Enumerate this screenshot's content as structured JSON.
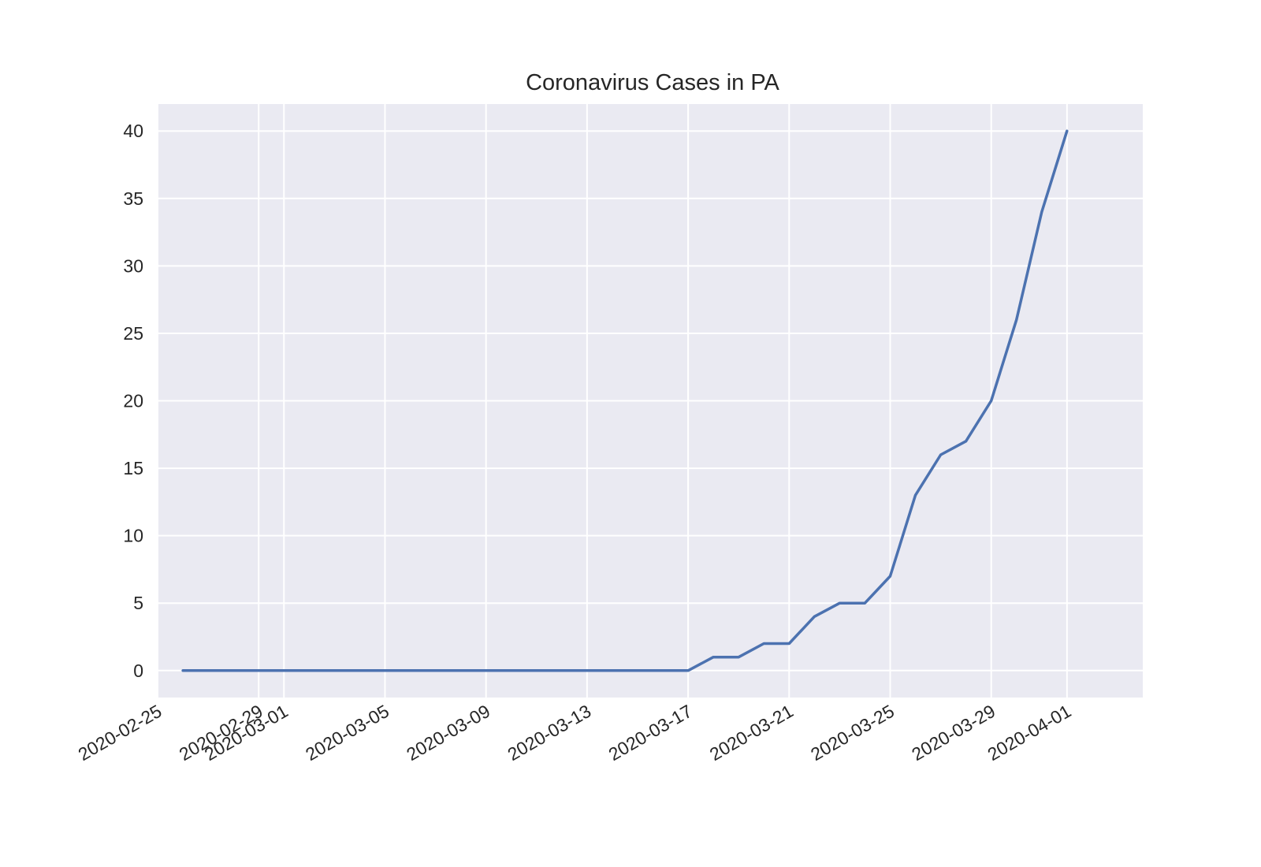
{
  "chart_data": {
    "type": "line",
    "title": "Coronavirus Cases in PA",
    "xlabel": "",
    "ylabel": "",
    "grid": true,
    "series_color": "#4c72b0",
    "background_color": "#eaeaf2",
    "xlim": [
      "2020-02-25",
      "2020-04-04"
    ],
    "ylim": [
      -2,
      42
    ],
    "x_ticks": [
      "2020-02-25",
      "2020-02-29",
      "2020-03-01",
      "2020-03-05",
      "2020-03-09",
      "2020-03-13",
      "2020-03-17",
      "2020-03-21",
      "2020-03-25",
      "2020-03-29",
      "2020-04-01"
    ],
    "y_ticks": [
      0,
      5,
      10,
      15,
      20,
      25,
      30,
      35,
      40
    ],
    "x": [
      "2020-02-26",
      "2020-02-27",
      "2020-02-28",
      "2020-02-29",
      "2020-03-01",
      "2020-03-02",
      "2020-03-03",
      "2020-03-04",
      "2020-03-05",
      "2020-03-06",
      "2020-03-07",
      "2020-03-08",
      "2020-03-09",
      "2020-03-10",
      "2020-03-11",
      "2020-03-12",
      "2020-03-13",
      "2020-03-14",
      "2020-03-15",
      "2020-03-16",
      "2020-03-17",
      "2020-03-18",
      "2020-03-19",
      "2020-03-20",
      "2020-03-21",
      "2020-03-22",
      "2020-03-23",
      "2020-03-24",
      "2020-03-25",
      "2020-03-26",
      "2020-03-27",
      "2020-03-28",
      "2020-03-29",
      "2020-03-30",
      "2020-03-31",
      "2020-04-01"
    ],
    "series": [
      {
        "values": [
          0,
          0,
          0,
          0,
          0,
          0,
          0,
          0,
          0,
          0,
          0,
          0,
          0,
          0,
          0,
          0,
          0,
          0,
          0,
          0,
          0,
          1,
          1,
          2,
          2,
          4,
          5,
          5,
          7,
          13,
          16,
          17,
          20,
          26,
          34,
          40
        ]
      }
    ]
  }
}
